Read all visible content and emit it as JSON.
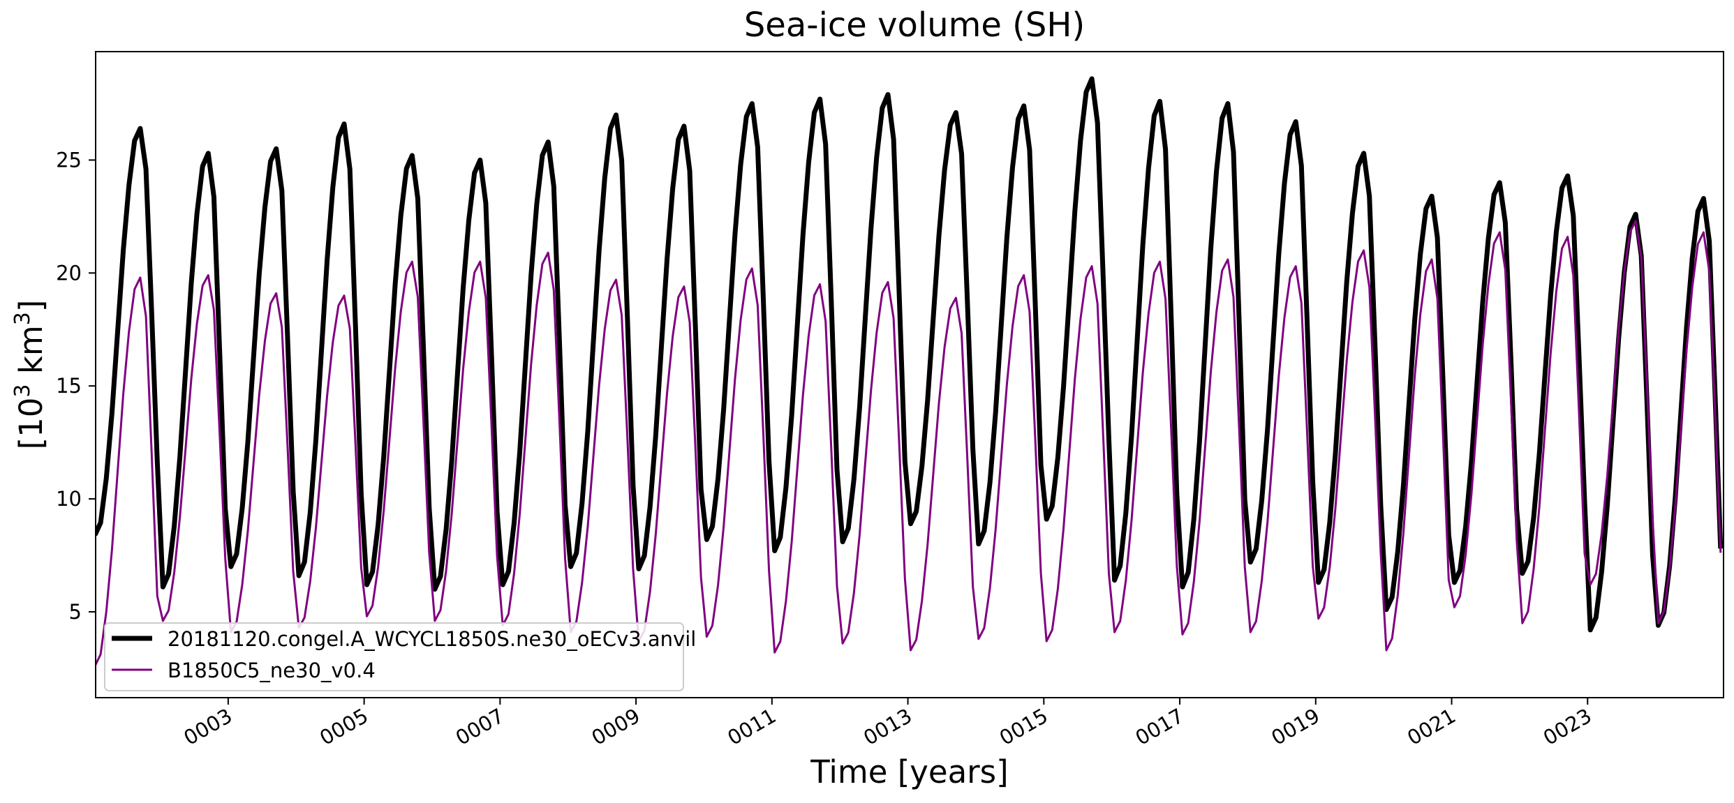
{
  "chart_data": {
    "type": "line",
    "title": "Sea-ice volume (SH)",
    "xlabel": "Time [years]",
    "ylabel": "[10³ km³]",
    "ylabel_base": "[10",
    "ylabel_exp1": "3",
    "ylabel_unit": " km",
    "ylabel_exp2": "3",
    "ylabel_close": "]",
    "xlim": [
      1.05,
      25.0
    ],
    "ylim": [
      1.2,
      29.8
    ],
    "x_ticks": [
      3,
      5,
      7,
      9,
      11,
      13,
      15,
      17,
      19,
      21,
      23
    ],
    "x_tick_labels": [
      "0003",
      "0005",
      "0007",
      "0009",
      "0011",
      "0013",
      "0015",
      "0017",
      "0019",
      "0021",
      "0023"
    ],
    "y_ticks": [
      5,
      10,
      15,
      20,
      25
    ],
    "y_tick_labels": [
      "5",
      "10",
      "15",
      "20",
      "25"
    ],
    "grid": false,
    "legend_position": "lower-left",
    "x_start_year": 1.04,
    "months_per_year": 12,
    "seasonal_shape": [
      0.0,
      0.03,
      0.14,
      0.3,
      0.5,
      0.7,
      0.86,
      0.97,
      1.0,
      0.9,
      0.55,
      0.18
    ],
    "series": [
      {
        "name": "20181120.congel.A_WCYCL1850S.ne30_oECv3.anvil",
        "color": "#000000",
        "line_width": 7,
        "annual_min": [
          8.4,
          6.1,
          7.0,
          6.6,
          6.2,
          6.0,
          6.2,
          7.0,
          6.9,
          8.2,
          7.7,
          8.1,
          8.9,
          8.0,
          9.1,
          6.4,
          6.1,
          7.2,
          6.3,
          5.1,
          6.3,
          6.7,
          4.2,
          4.4
        ],
        "annual_max": [
          26.4,
          25.3,
          25.5,
          26.6,
          25.2,
          25.0,
          25.8,
          27.0,
          26.5,
          27.5,
          27.7,
          27.9,
          27.1,
          27.4,
          28.6,
          27.6,
          27.5,
          26.7,
          25.3,
          23.4,
          24.0,
          24.3,
          22.6,
          23.3
        ]
      },
      {
        "name": "B1850C5_ne30_v0.4",
        "color": "#800080",
        "line_width": 3,
        "annual_min": [
          2.6,
          4.6,
          4.1,
          4.3,
          4.8,
          4.6,
          4.4,
          4.1,
          3.7,
          3.9,
          3.2,
          3.6,
          3.3,
          3.8,
          3.7,
          4.1,
          4.0,
          4.1,
          4.7,
          3.3,
          5.2,
          4.5,
          6.2,
          4.5
        ],
        "annual_max": [
          19.8,
          19.9,
          19.1,
          19.0,
          20.5,
          20.5,
          20.9,
          19.7,
          19.4,
          20.2,
          19.5,
          19.6,
          18.9,
          19.9,
          20.3,
          20.5,
          20.6,
          20.3,
          21.0,
          20.6,
          21.8,
          21.6,
          22.3,
          21.8
        ]
      }
    ]
  }
}
